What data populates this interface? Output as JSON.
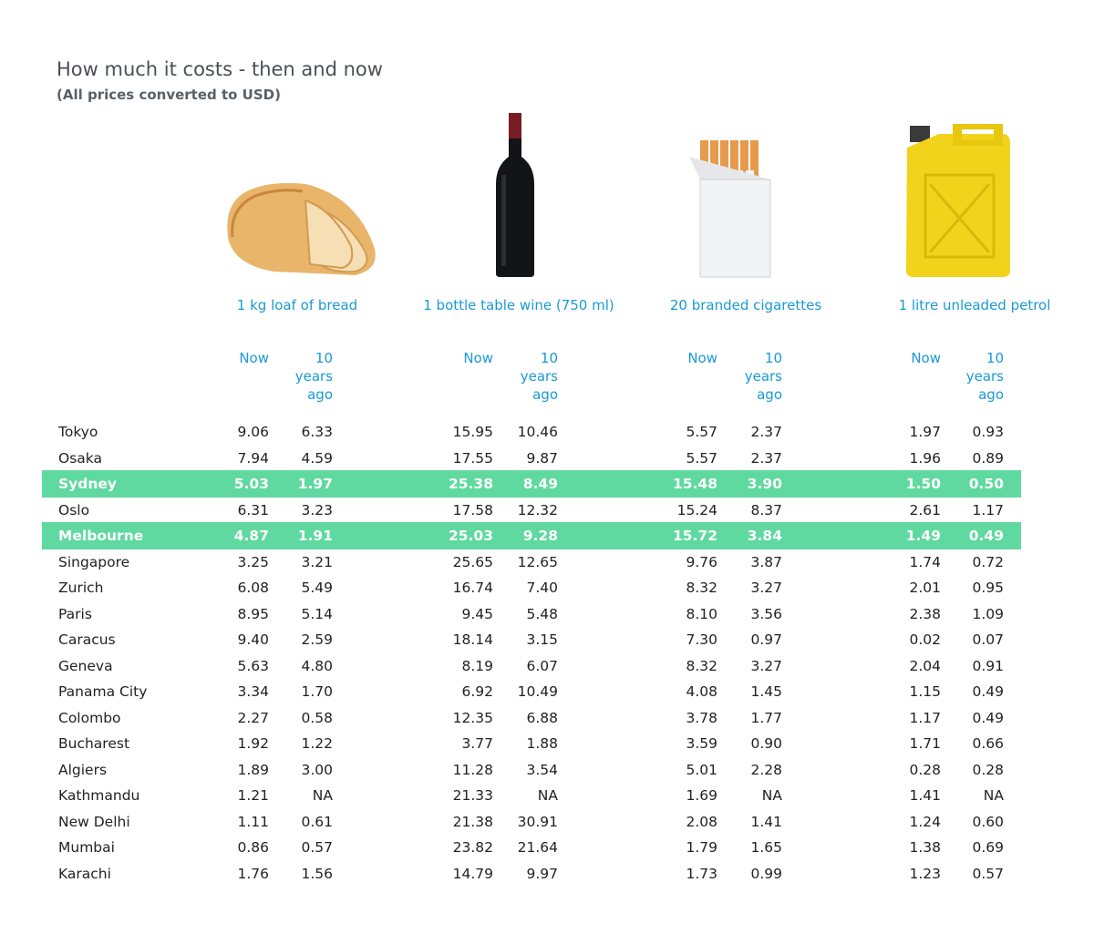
{
  "header": {
    "title": "How much it costs - then and now",
    "subtitle": "(All prices converted to USD)"
  },
  "table": {
    "columns": [
      "1 kg loaf of bread",
      "1 bottle table wine (750 ml)",
      "20 branded cigarettes",
      "1 litre unleaded petrol"
    ],
    "now_label": "Now",
    "ago_label": "10 years ago",
    "highlight_color": "#5fd9a0",
    "rows": [
      {
        "city": "Tokyo",
        "cells": [
          "9.06",
          "6.33",
          "15.95",
          "10.46",
          "5.57",
          "2.37",
          "1.97",
          "0.93"
        ]
      },
      {
        "city": "Osaka",
        "cells": [
          "7.94",
          "4.59",
          "17.55",
          "9.87",
          "5.57",
          "2.37",
          "1.96",
          "0.89"
        ]
      },
      {
        "city": "Sydney",
        "cells": [
          "5.03",
          "1.97",
          "25.38",
          "8.49",
          "15.48",
          "3.90",
          "1.50",
          "0.50"
        ],
        "highlight": true
      },
      {
        "city": "Oslo",
        "cells": [
          "6.31",
          "3.23",
          "17.58",
          "12.32",
          "15.24",
          "8.37",
          "2.61",
          "1.17"
        ]
      },
      {
        "city": "Melbourne",
        "cells": [
          "4.87",
          "1.91",
          "25.03",
          "9.28",
          "15.72",
          "3.84",
          "1.49",
          "0.49"
        ],
        "highlight": true
      },
      {
        "city": "Singapore",
        "cells": [
          "3.25",
          "3.21",
          "25.65",
          "12.65",
          "9.76",
          "3.87",
          "1.74",
          "0.72"
        ]
      },
      {
        "city": "Zurich",
        "cells": [
          "6.08",
          "5.49",
          "16.74",
          "7.40",
          "8.32",
          "3.27",
          "2.01",
          "0.95"
        ]
      },
      {
        "city": "Paris",
        "cells": [
          "8.95",
          "5.14",
          "9.45",
          "5.48",
          "8.10",
          "3.56",
          "2.38",
          "1.09"
        ]
      },
      {
        "city": "Caracus",
        "cells": [
          "9.40",
          "2.59",
          "18.14",
          "3.15",
          "7.30",
          "0.97",
          "0.02",
          "0.07"
        ]
      },
      {
        "city": "Geneva",
        "cells": [
          "5.63",
          "4.80",
          "8.19",
          "6.07",
          "8.32",
          "3.27",
          "2.04",
          "0.91"
        ]
      },
      {
        "city": "Panama City",
        "cells": [
          "3.34",
          "1.70",
          "6.92",
          "10.49",
          "4.08",
          "1.45",
          "1.15",
          "0.49"
        ]
      },
      {
        "city": "Colombo",
        "cells": [
          "2.27",
          "0.58",
          "12.35",
          "6.88",
          "3.78",
          "1.77",
          "1.17",
          "0.49"
        ]
      },
      {
        "city": "Bucharest",
        "cells": [
          "1.92",
          "1.22",
          "3.77",
          "1.88",
          "3.59",
          "0.90",
          "1.71",
          "0.66"
        ]
      },
      {
        "city": "Algiers",
        "cells": [
          "1.89",
          "3.00",
          "11.28",
          "3.54",
          "5.01",
          "2.28",
          "0.28",
          "0.28"
        ]
      },
      {
        "city": "Kathmandu",
        "cells": [
          "1.21",
          "NA",
          "21.33",
          "NA",
          "1.69",
          "NA",
          "1.41",
          "NA"
        ]
      },
      {
        "city": "New Delhi",
        "cells": [
          "1.11",
          "0.61",
          "21.38",
          "30.91",
          "2.08",
          "1.41",
          "1.24",
          "0.60"
        ]
      },
      {
        "city": "Mumbai",
        "cells": [
          "0.86",
          "0.57",
          "23.82",
          "21.64",
          "1.79",
          "1.65",
          "1.38",
          "0.69"
        ]
      },
      {
        "city": "Karachi",
        "cells": [
          "1.76",
          "1.56",
          "14.79",
          "9.97",
          "1.73",
          "0.99",
          "1.23",
          "0.57"
        ]
      }
    ]
  }
}
